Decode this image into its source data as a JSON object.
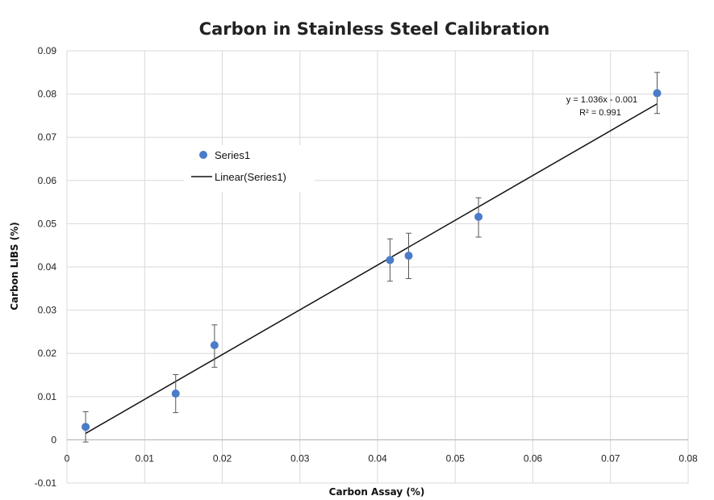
{
  "chart_data": {
    "type": "scatter",
    "title": "Carbon in Stainless Steel Calibration",
    "xlabel": "Carbon Assay (%)",
    "ylabel": "Carbon LIBS (%)",
    "xlim": [
      0,
      0.08
    ],
    "ylim": [
      -0.01,
      0.09
    ],
    "xticks": [
      0,
      0.01,
      0.02,
      0.03,
      0.04,
      0.05,
      0.06,
      0.07,
      0.08
    ],
    "yticks": [
      -0.01,
      0,
      0.01,
      0.02,
      0.03,
      0.04,
      0.05,
      0.06,
      0.07,
      0.08,
      0.09
    ],
    "x_tick_labels": [
      "0",
      "0.01",
      "0.02",
      "0.03",
      "0.04",
      "0.05",
      "0.06",
      "0.07",
      "0.08"
    ],
    "y_tick_labels": [
      "-0.01",
      "0",
      "0.01",
      "0.02",
      "0.03",
      "0.04",
      "0.05",
      "0.06",
      "0.07",
      "0.08",
      "0.09"
    ],
    "grid": true,
    "legend_position": "upper-left",
    "series": [
      {
        "name": "Series1",
        "color": "#4a7cc9",
        "x": [
          0.0024,
          0.014,
          0.019,
          0.0416,
          0.044,
          0.053,
          0.076
        ],
        "y": [
          0.003,
          0.0107,
          0.0219,
          0.0416,
          0.0426,
          0.0516,
          0.0802
        ],
        "error_low": [
          0.0035,
          0.0044,
          0.0051,
          0.0049,
          0.0053,
          0.0047,
          0.0047
        ],
        "error_high": [
          0.0035,
          0.0044,
          0.0047,
          0.0049,
          0.0052,
          0.0044,
          0.0048
        ]
      }
    ],
    "trendline": {
      "name": "Linear(Series1)",
      "type": "linear",
      "slope": 1.036,
      "intercept": -0.001,
      "x_range": [
        0.0024,
        0.076
      ],
      "color": "#111111",
      "equation_label": "y = 1.036x - 0.001",
      "r2_label": "R² = 0.991"
    }
  }
}
